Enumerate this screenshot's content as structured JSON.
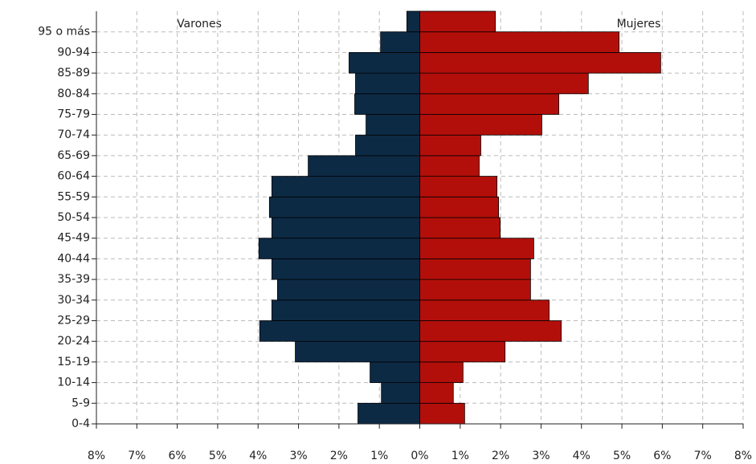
{
  "chart_data": {
    "type": "pyramid",
    "categories": [
      "0-4",
      "5-9",
      "10-14",
      "15-19",
      "20-24",
      "25-29",
      "30-34",
      "35-39",
      "40-44",
      "45-49",
      "50-54",
      "55-59",
      "60-64",
      "65-69",
      "70-74",
      "75-79",
      "80-84",
      "85-89",
      "90-94",
      "95 o más"
    ],
    "series": [
      {
        "name": "Varones",
        "color": "#0d2a45",
        "values": [
          -1.53,
          -0.95,
          -1.23,
          -3.08,
          -3.96,
          -3.66,
          -3.52,
          -3.66,
          -3.98,
          -3.66,
          -3.72,
          -3.66,
          -2.76,
          -1.59,
          -1.33,
          -1.61,
          -1.59,
          -1.75,
          -0.97,
          -0.32
        ]
      },
      {
        "name": "Mujeres",
        "color": "#b30f0a",
        "values": [
          1.11,
          0.83,
          1.07,
          2.11,
          3.5,
          3.2,
          2.74,
          2.74,
          2.82,
          1.99,
          1.95,
          1.91,
          1.47,
          1.51,
          3.02,
          3.44,
          4.17,
          5.96,
          4.93,
          1.87
        ]
      }
    ],
    "xlim": [
      -8,
      8
    ],
    "xticks": [
      {
        "value": -8,
        "label": "8%"
      },
      {
        "value": -7,
        "label": "7%"
      },
      {
        "value": -6,
        "label": "6%"
      },
      {
        "value": -5,
        "label": "5%"
      },
      {
        "value": -4,
        "label": "4%"
      },
      {
        "value": -3,
        "label": "3%"
      },
      {
        "value": -2,
        "label": "2%"
      },
      {
        "value": -1,
        "label": "1%"
      },
      {
        "value": 0,
        "label": "0%"
      },
      {
        "value": 1,
        "label": "1%"
      },
      {
        "value": 2,
        "label": "2%"
      },
      {
        "value": 3,
        "label": "3%"
      },
      {
        "value": 4,
        "label": "4%"
      },
      {
        "value": 5,
        "label": "5%"
      },
      {
        "value": 6,
        "label": "6%"
      },
      {
        "value": 7,
        "label": "7%"
      },
      {
        "value": 8,
        "label": "8%"
      }
    ],
    "grid": true
  }
}
